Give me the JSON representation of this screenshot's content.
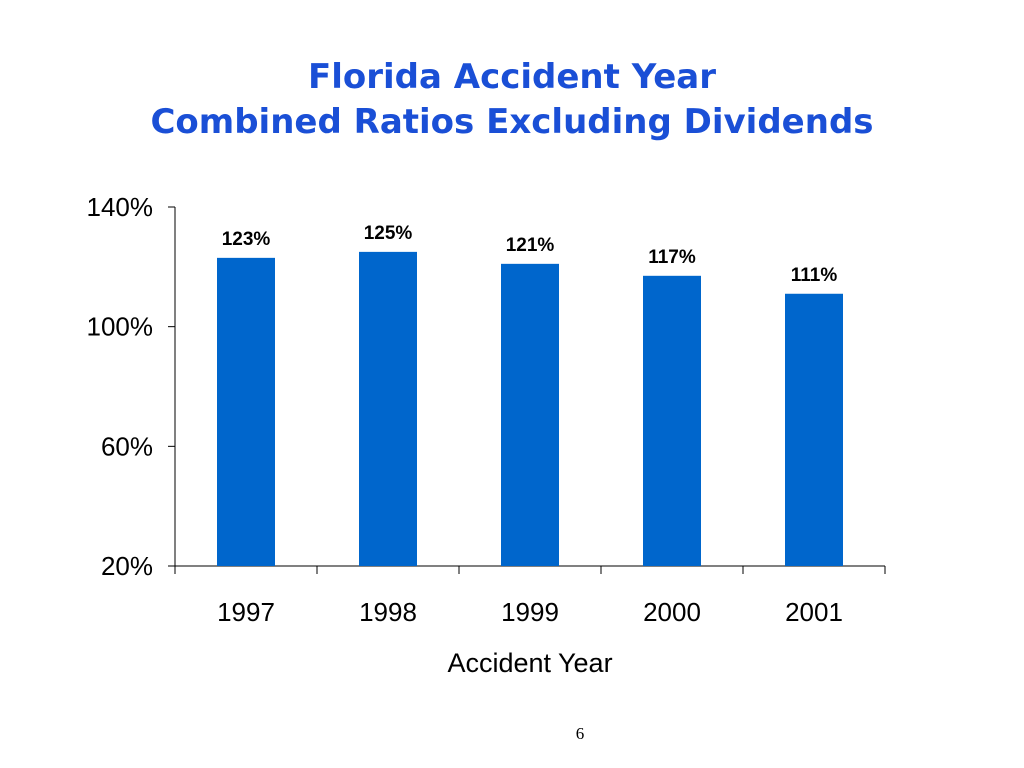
{
  "slide": {
    "title_line1": "Florida Accident Year",
    "title_line2": "Combined Ratios Excluding Dividends",
    "page_number": "6"
  },
  "colors": {
    "title": "#1a4fd6",
    "bar": "#0066cc",
    "axis": "#000000"
  },
  "chart_data": {
    "type": "bar",
    "title": "Florida Accident Year Combined Ratios Excluding Dividends",
    "xlabel": "Accident Year",
    "ylabel": "",
    "categories": [
      "1997",
      "1998",
      "1999",
      "2000",
      "2001"
    ],
    "values": [
      123,
      125,
      121,
      117,
      111
    ],
    "data_labels": [
      "123%",
      "125%",
      "121%",
      "117%",
      "111%"
    ],
    "ylim": [
      20,
      140
    ],
    "yticks": [
      20,
      60,
      100,
      140
    ],
    "ytick_labels": [
      "20%",
      "60%",
      "100%",
      "140%"
    ],
    "unit": "%",
    "grid": false,
    "legend": "none"
  }
}
